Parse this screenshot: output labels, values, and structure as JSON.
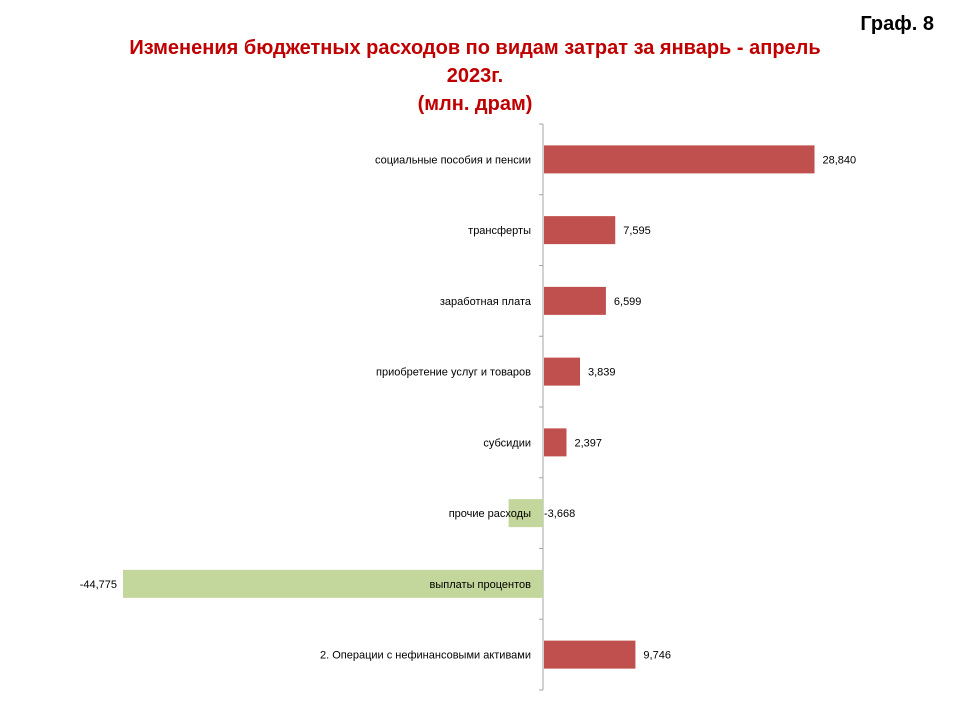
{
  "graph_label": "Граф. 8",
  "chart_data": {
    "type": "bar",
    "orientation": "horizontal",
    "title_lines": [
      "Изменения бюджетных расходов по видам затрат за январь - апрель",
      "2023г.",
      "(млн. драм)"
    ],
    "categories": [
      "социальные пособия и пенсии",
      "трансферты",
      "заработная плата",
      "приобретение   услуг и товаров",
      "субсидии",
      "прочие расходы",
      "выплаты процентов",
      "2. Операции с нефинансовыми активами"
    ],
    "values": [
      28840,
      7595,
      6599,
      3839,
      2397,
      -3668,
      -44775,
      9746
    ],
    "value_labels": [
      "28,840",
      "7,595",
      "6,599",
      "3,839",
      "2,397",
      "-3,668",
      "-44,775",
      "9,746"
    ],
    "colors": {
      "positive": "#c0504d",
      "negative": "#c3d69b"
    },
    "xlim": [
      -50000,
      50000
    ],
    "grid": false,
    "legend": "none"
  }
}
